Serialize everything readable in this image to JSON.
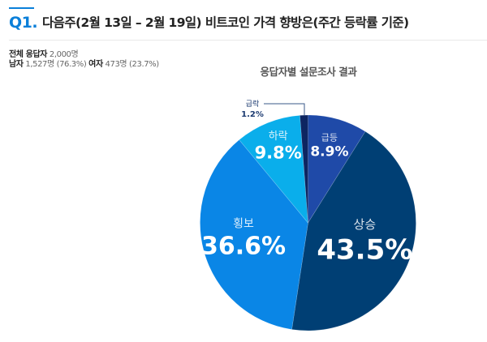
{
  "header": {
    "question_number": "Q1.",
    "title": "다음주(2월 13일 – 2월 19일)  비트코인 가격 향방은(주간 등락률 기준)"
  },
  "respondents": {
    "total_label": "전체 응답자",
    "total_value": "2,000명",
    "male_label": "남자",
    "male_value": "1,527명 (76.3%)",
    "female_label": "여자",
    "female_value": "473명 (23.7%)"
  },
  "chart_data": {
    "type": "pie",
    "title": "응답자별 설문조사 결과",
    "start_angle": "top (12 o'clock), clockwise",
    "categories": [
      "급등",
      "상승",
      "횡보",
      "하락",
      "급락"
    ],
    "values": [
      8.9,
      43.5,
      36.6,
      9.8,
      1.2
    ],
    "labels": [
      "8.9%",
      "43.5%",
      "36.6%",
      "9.8%",
      "1.2%"
    ],
    "colors": [
      "#1f4aa8",
      "#003f74",
      "#0a86e6",
      "#0aaeeb",
      "#0d2561"
    ],
    "unit": "%",
    "annotations": [
      "급락 1.2% label is placed outside with a leader line"
    ]
  }
}
